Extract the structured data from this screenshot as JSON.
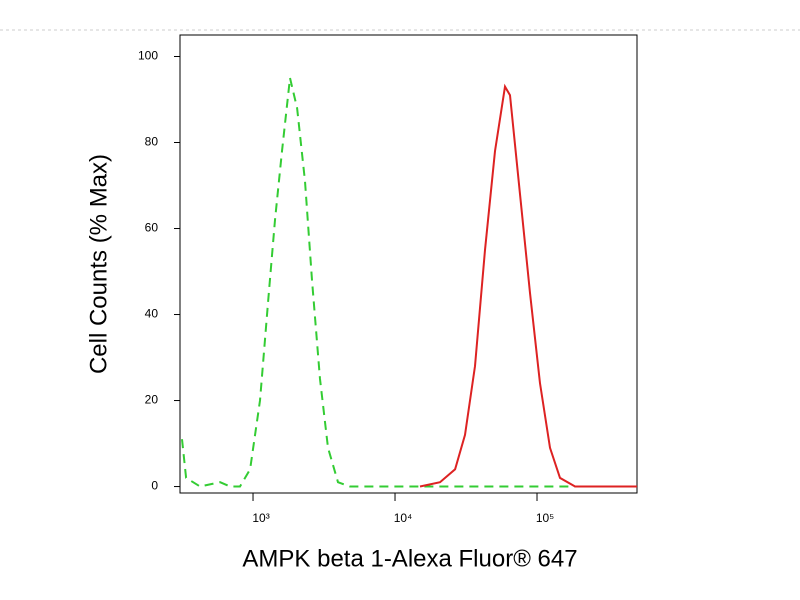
{
  "chart_data": {
    "type": "line",
    "xlabel": "AMPK beta 1-Alexa Fluor® 647",
    "ylabel": "Cell Counts (% Max)",
    "xscale": "log",
    "xlim": [
      306,
      506000
    ],
    "ylim": [
      -1.5,
      105
    ],
    "xticks": [
      {
        "value": 1000,
        "label": "10³"
      },
      {
        "value": 10000,
        "label": "10⁴"
      },
      {
        "value": 100000,
        "label": "10⁵"
      }
    ],
    "yticks": [
      0,
      20,
      40,
      60,
      80,
      100
    ],
    "grid": false,
    "series": [
      {
        "color": "#33cc33",
        "line_style": "dashed",
        "x": [
          316,
          338,
          424,
          586,
          688,
          810,
          953,
          1120,
          1276,
          1429,
          1600,
          1822,
          2042,
          2323,
          2603,
          2965,
          3375,
          3969,
          4819,
          506000
        ],
        "values": [
          11,
          2,
          0,
          1,
          0,
          0,
          4,
          20,
          43,
          62,
          78,
          95,
          88,
          71,
          48,
          25,
          9,
          1,
          0,
          0
        ]
      },
      {
        "color": "#dd2222",
        "line_style": "solid",
        "x": [
          15000,
          20750,
          26480,
          31130,
          36600,
          43000,
          50600,
          59500,
          64500,
          75900,
          89300,
          105000,
          123500,
          145200,
          185300,
          506000
        ],
        "values": [
          0,
          1,
          4,
          12,
          28,
          55,
          78,
          93,
          91,
          68,
          45,
          24,
          9,
          2,
          0,
          0
        ]
      }
    ]
  }
}
